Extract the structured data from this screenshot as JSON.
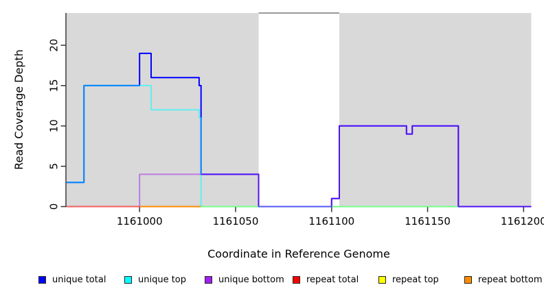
{
  "chart_data": {
    "type": "line",
    "title": "",
    "xlabel": "Coordinate in Reference Genome",
    "ylabel": "Read Coverage Depth",
    "xlim": [
      1160962,
      1161204
    ],
    "ylim": [
      0,
      24
    ],
    "x_ticks": [
      1161000,
      1161050,
      1161100,
      1161150,
      1161200
    ],
    "y_ticks": [
      0,
      5,
      10,
      15,
      20
    ],
    "grid": false,
    "legend_position": "bottom",
    "plot_background": "#ffffff",
    "background_regions": [
      {
        "name": "covered-region-left",
        "x0": 1160962,
        "x1": 1161062,
        "color": "#d9d9d9"
      },
      {
        "name": "covered-region-right",
        "x0": 1161104,
        "x1": 1161204,
        "color": "#d9d9d9"
      }
    ],
    "gap_top_line": {
      "x0": 1161062,
      "x1": 1161104,
      "y": 24,
      "color": "#9a9a9a"
    },
    "series": [
      {
        "name": "repeat total",
        "color": "#FF0000",
        "opacity": 0.6,
        "steps": [
          [
            1160962,
            0
          ],
          [
            1161000,
            0
          ]
        ]
      },
      {
        "name": "repeat top",
        "color": "#FFFF00",
        "opacity": 1,
        "steps": [
          [
            1161000,
            0
          ],
          [
            1161166,
            0
          ]
        ]
      },
      {
        "name": "repeat bottom",
        "color": "#FF8C00",
        "opacity": 1,
        "steps": [
          [
            1161000,
            0
          ],
          [
            1161032,
            0
          ]
        ]
      },
      {
        "name": "unique total",
        "color": "#0000FF",
        "opacity": 1,
        "steps": [
          [
            1160962,
            3
          ],
          [
            1160971,
            15
          ],
          [
            1161000,
            19
          ],
          [
            1161006,
            16
          ],
          [
            1161031,
            15
          ],
          [
            1161032,
            4
          ],
          [
            1161062,
            0
          ],
          [
            1161100,
            1
          ],
          [
            1161104,
            10
          ],
          [
            1161139,
            9
          ],
          [
            1161142,
            10
          ],
          [
            1161166,
            0
          ],
          [
            1161204,
            0
          ]
        ]
      },
      {
        "name": "unique top",
        "color": "#00FFFF",
        "opacity": 0.55,
        "steps": [
          [
            1160962,
            3
          ],
          [
            1160971,
            15
          ],
          [
            1161006,
            12
          ],
          [
            1161031,
            11
          ],
          [
            1161032,
            0
          ],
          [
            1161166,
            0
          ]
        ]
      },
      {
        "name": "unique bottom",
        "color": "#A020F0",
        "opacity": 0.5,
        "steps": [
          [
            1161000,
            0
          ],
          [
            1161000,
            4
          ],
          [
            1161062,
            0
          ],
          [
            1161100,
            1
          ],
          [
            1161104,
            10
          ],
          [
            1161139,
            9
          ],
          [
            1161142,
            10
          ],
          [
            1161166,
            0
          ],
          [
            1161204,
            0
          ]
        ]
      }
    ],
    "legend": [
      {
        "label": "unique total",
        "color": "#0000FF"
      },
      {
        "label": "unique top",
        "color": "#00FFFF"
      },
      {
        "label": "unique bottom",
        "color": "#A020F0"
      },
      {
        "label": "repeat total",
        "color": "#FF0000"
      },
      {
        "label": "repeat top",
        "color": "#FFFF00"
      },
      {
        "label": "repeat bottom",
        "color": "#FF8C00"
      }
    ]
  }
}
